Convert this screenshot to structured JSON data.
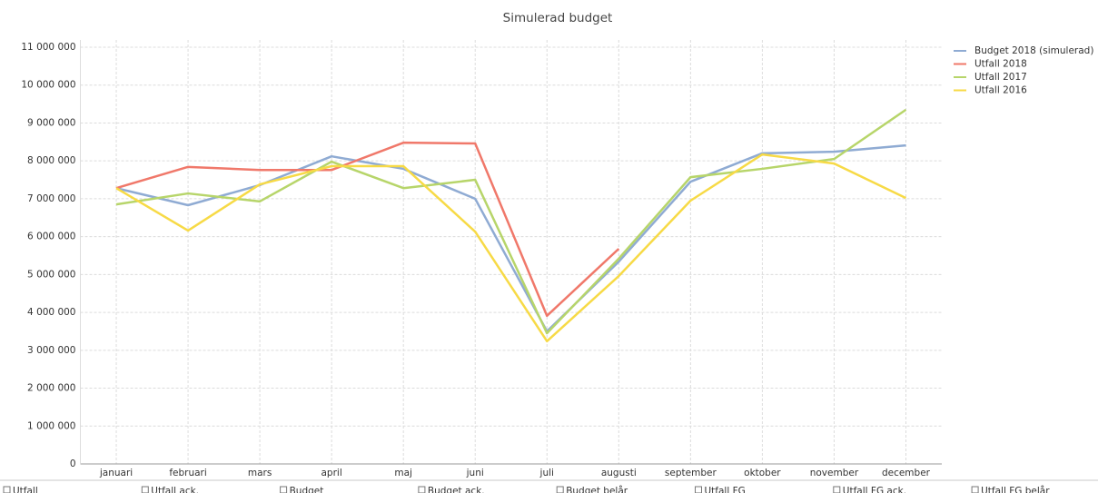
{
  "chart_data": {
    "type": "line",
    "title": "Simulerad budget",
    "categories": [
      "januari",
      "februari",
      "mars",
      "april",
      "maj",
      "juni",
      "juli",
      "augusti",
      "september",
      "oktober",
      "november",
      "december"
    ],
    "series": [
      {
        "name": "Budget 2018 (simulerad)",
        "color": "#8fabd3",
        "values": [
          7280000,
          6830000,
          7360000,
          8120000,
          7790000,
          7000000,
          3500000,
          5340000,
          7450000,
          8200000,
          8240000,
          8410000
        ]
      },
      {
        "name": "Utfall 2018",
        "color": "#f0786a",
        "values": [
          7280000,
          7840000,
          7760000,
          7760000,
          8480000,
          8460000,
          3910000,
          5680000,
          null,
          null,
          null,
          null
        ]
      },
      {
        "name": "Utfall 2017",
        "color": "#b7d56a",
        "values": [
          6850000,
          7140000,
          6930000,
          7980000,
          7280000,
          7500000,
          3450000,
          5420000,
          7570000,
          7790000,
          8050000,
          9350000
        ]
      },
      {
        "name": "Utfall 2016",
        "color": "#f7da46",
        "values": [
          7280000,
          6160000,
          7380000,
          7860000,
          7860000,
          6130000,
          3240000,
          4960000,
          6950000,
          8170000,
          7930000,
          7020000
        ]
      }
    ],
    "ylim": [
      0,
      11000000
    ],
    "yticks": [
      0,
      {
        "value": 1000000,
        "label": "1 000 000"
      },
      {
        "value": 2000000,
        "label": "2 000 000"
      },
      {
        "value": 3000000,
        "label": "3 000 000"
      },
      {
        "value": 4000000,
        "label": "4 000 000"
      },
      {
        "value": 5000000,
        "label": "5 000 000"
      },
      {
        "value": 6000000,
        "label": "6 000 000"
      },
      {
        "value": 7000000,
        "label": "7 000 000"
      },
      {
        "value": 8000000,
        "label": "8 000 000"
      },
      {
        "value": 9000000,
        "label": "9 000 000"
      },
      {
        "value": 10000000,
        "label": "10 000 000"
      },
      {
        "value": 11000000,
        "label": "11 000 000"
      }
    ],
    "grid": true,
    "legend": "top-right"
  },
  "checkboxes": [
    "Utfall",
    "Utfall ack.",
    "Budget",
    "Budget ack.",
    "Budget belår",
    "Utfall FG",
    "Utfall FG ack.",
    "Utfall FG belår"
  ]
}
